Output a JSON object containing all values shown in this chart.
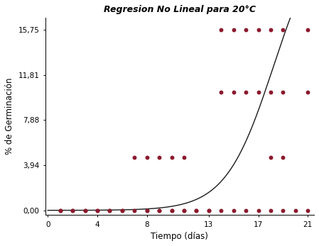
{
  "title": "Regresion No Lineal para 20°C",
  "xlabel": "Tiempo (días)",
  "ylabel": "% de Germinación",
  "yticks": [
    0.0,
    3.94,
    7.88,
    11.81,
    15.75
  ],
  "ytick_labels": [
    "0,00",
    "3,94",
    "7,88",
    "11,81",
    "15,75"
  ],
  "xticks": [
    0,
    4,
    8,
    13,
    17,
    21
  ],
  "xlim": [
    -0.2,
    21.5
  ],
  "ylim": [
    -0.4,
    16.8
  ],
  "dot_color": "#8B1A2E",
  "curve_color": "#1a1a1a",
  "background_color": "#ffffff",
  "scatter_x": [
    1,
    2,
    3,
    4,
    5,
    6,
    7,
    8,
    9,
    10,
    11,
    12,
    13,
    7,
    8,
    9,
    10,
    11,
    14,
    15,
    16,
    17,
    18,
    19,
    21,
    14,
    15,
    16,
    17,
    18,
    19,
    21,
    18,
    19,
    1,
    2,
    3,
    4,
    5,
    6,
    8,
    9,
    10,
    11,
    12,
    13,
    14,
    15,
    16,
    17,
    18,
    19,
    20,
    21
  ],
  "scatter_y": [
    0.0,
    0.0,
    0.0,
    0.0,
    0.0,
    0.0,
    0.0,
    0.0,
    0.0,
    0.0,
    0.0,
    0.0,
    0.0,
    4.65,
    4.65,
    4.65,
    4.65,
    4.65,
    15.75,
    15.75,
    15.75,
    15.75,
    15.75,
    15.75,
    15.75,
    10.3,
    10.3,
    10.3,
    10.3,
    10.3,
    10.3,
    10.3,
    4.65,
    4.65,
    0.0,
    0.0,
    0.0,
    0.0,
    0.0,
    0.0,
    0.0,
    0.0,
    0.0,
    0.0,
    0.0,
    0.0,
    0.0,
    0.0,
    0.0,
    0.0,
    0.0,
    0.0,
    0.0,
    0.0
  ],
  "sigmoid_L": 25.0,
  "sigmoid_k": 0.52,
  "sigmoid_x0": 18.2
}
